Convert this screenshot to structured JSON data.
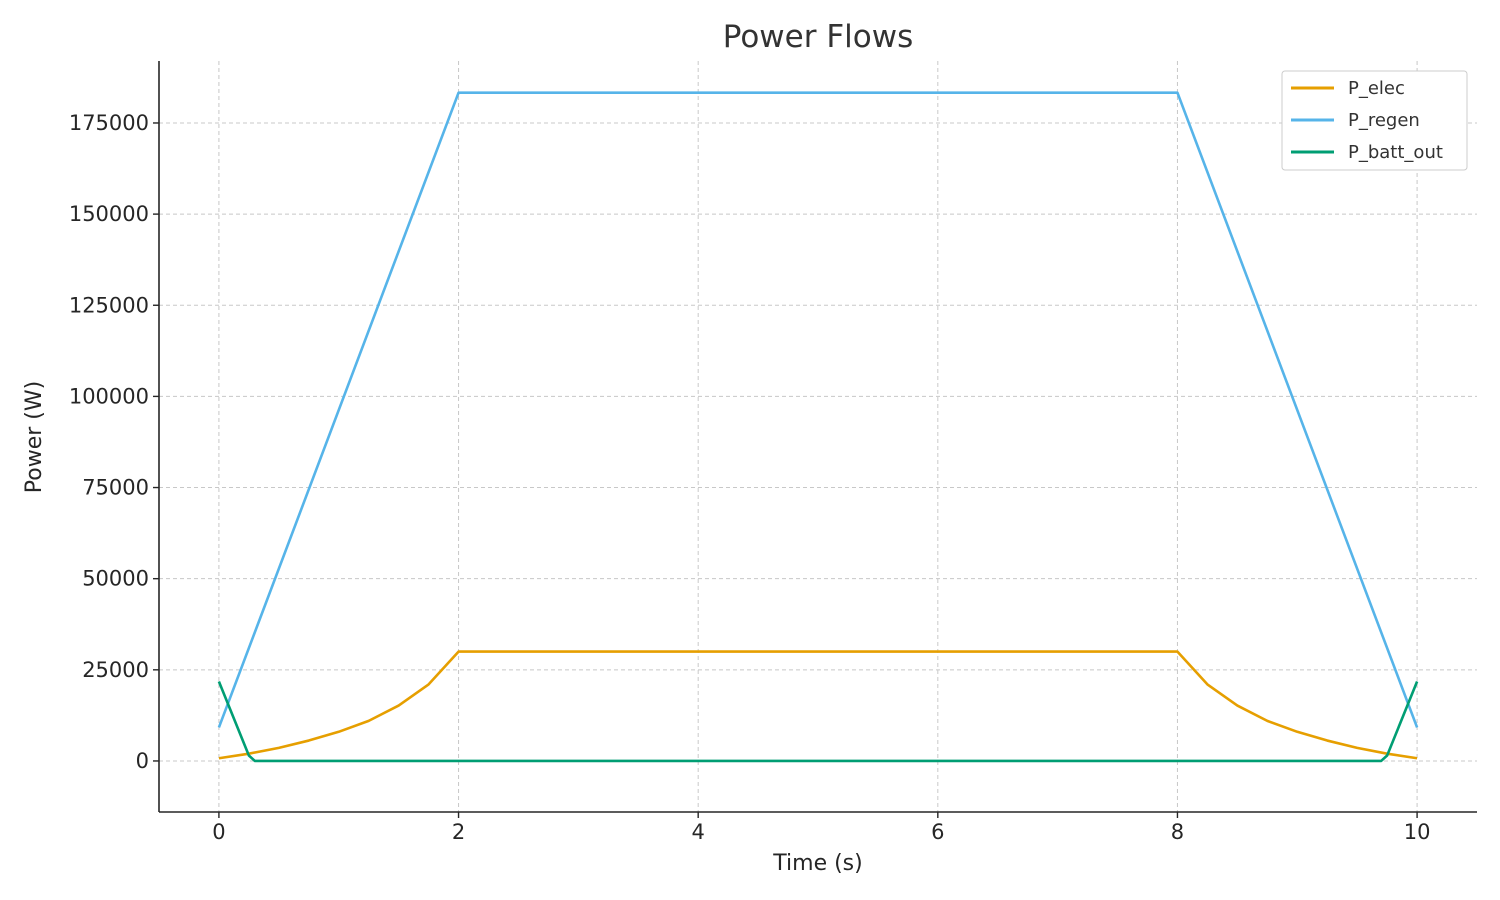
{
  "chart_data": {
    "type": "line",
    "title": "Power Flows",
    "xlabel": "Time (s)",
    "ylabel": "Power (W)",
    "xlim": [
      -0.5,
      10.5
    ],
    "ylim": [
      -14000,
      192000
    ],
    "xticks": [
      0,
      2,
      4,
      6,
      8,
      10
    ],
    "yticks": [
      0,
      25000,
      50000,
      75000,
      100000,
      125000,
      150000,
      175000
    ],
    "grid": true,
    "legend_position": "top-right",
    "series": [
      {
        "name": "P_elec",
        "color": "#E69F00",
        "points": [
          [
            0,
            750
          ],
          [
            0.25,
            2000
          ],
          [
            0.5,
            3600
          ],
          [
            0.75,
            5600
          ],
          [
            1,
            8000
          ],
          [
            1.25,
            11000
          ],
          [
            1.5,
            15200
          ],
          [
            1.75,
            21000
          ],
          [
            2,
            30000
          ],
          [
            8,
            30000
          ],
          [
            8.25,
            21000
          ],
          [
            8.5,
            15200
          ],
          [
            8.75,
            11000
          ],
          [
            9,
            8000
          ],
          [
            9.25,
            5600
          ],
          [
            9.5,
            3600
          ],
          [
            9.75,
            2000
          ],
          [
            10,
            750
          ]
        ]
      },
      {
        "name": "P_regen",
        "color": "#56B4E9",
        "points": [
          [
            0,
            9200
          ],
          [
            2,
            183300
          ],
          [
            8,
            183300
          ],
          [
            10,
            9200
          ]
        ]
      },
      {
        "name": "P_batt_out",
        "color": "#009E73",
        "points": [
          [
            0,
            21800
          ],
          [
            0.25,
            1500
          ],
          [
            0.3,
            0
          ],
          [
            9.7,
            0
          ],
          [
            9.75,
            1500
          ],
          [
            10,
            21800
          ]
        ]
      }
    ]
  }
}
